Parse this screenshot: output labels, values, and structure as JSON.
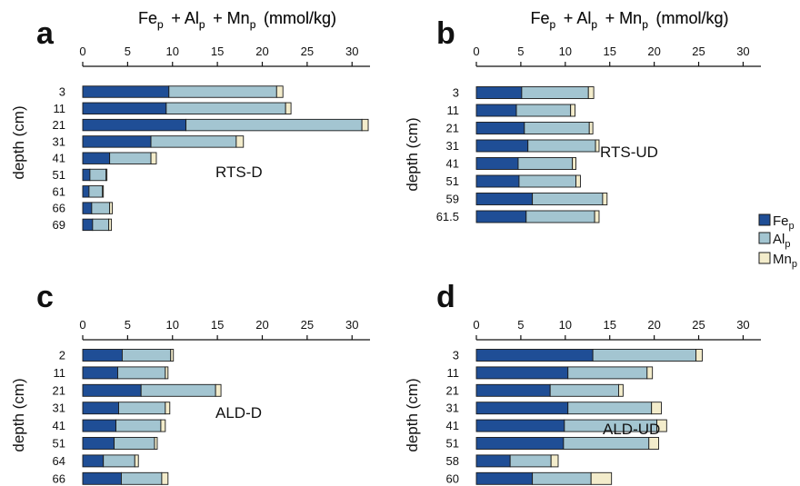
{
  "colors": {
    "Fe": "#1f4e96",
    "Al": "#a3c5d1",
    "Mn": "#f3eccb",
    "stroke": "#1a1a1a"
  },
  "legend": {
    "items": [
      {
        "key": "Fe",
        "base": "Fe",
        "sub": "p"
      },
      {
        "key": "Al",
        "base": "Al",
        "sub": "p"
      },
      {
        "key": "Mn",
        "base": "Mn",
        "sub": "p"
      }
    ]
  },
  "chart_data": [
    {
      "type": "bar",
      "panel": "a",
      "site": "RTS-D",
      "title": "Fep + Alp + Mnp (mmol/kg)",
      "ylabel": "depth (cm)",
      "xlim": [
        0,
        32
      ],
      "xticks": [
        0,
        5,
        10,
        15,
        20,
        25,
        30
      ],
      "categories": [
        "3",
        "11",
        "21",
        "31",
        "41",
        "51",
        "61",
        "66",
        "69"
      ],
      "series": [
        {
          "name": "Fep",
          "values": [
            9.6,
            9.3,
            11.5,
            7.6,
            3.0,
            0.8,
            0.7,
            1.0,
            1.1
          ]
        },
        {
          "name": "Alp",
          "values": [
            12.0,
            13.3,
            19.6,
            9.5,
            4.6,
            1.8,
            1.5,
            2.0,
            1.8
          ]
        },
        {
          "name": "Mnp",
          "values": [
            0.7,
            0.6,
            0.7,
            0.8,
            0.6,
            0.1,
            0.1,
            0.3,
            0.3
          ]
        }
      ]
    },
    {
      "type": "bar",
      "panel": "b",
      "site": "RTS-UD",
      "title": "Fep + Alp + Mnp (mmol/kg)",
      "ylabel": "depth (cm)",
      "xlim": [
        0,
        32
      ],
      "xticks": [
        0,
        5,
        10,
        15,
        20,
        25,
        30
      ],
      "categories": [
        "3",
        "11",
        "21",
        "31",
        "41",
        "51",
        "59",
        "61.5"
      ],
      "series": [
        {
          "name": "Fep",
          "values": [
            5.1,
            4.5,
            5.4,
            5.8,
            4.7,
            4.8,
            6.3,
            5.6
          ]
        },
        {
          "name": "Alp",
          "values": [
            7.5,
            6.1,
            7.3,
            7.6,
            6.1,
            6.4,
            7.9,
            7.7
          ]
        },
        {
          "name": "Mnp",
          "values": [
            0.6,
            0.5,
            0.4,
            0.4,
            0.4,
            0.5,
            0.5,
            0.5
          ]
        }
      ]
    },
    {
      "type": "bar",
      "panel": "c",
      "site": "ALD-D",
      "title": "Fep + Alp + Mnp (mmol/kg)",
      "ylabel": "depth (cm)",
      "xlim": [
        0,
        32
      ],
      "xticks": [
        0,
        5,
        10,
        15,
        20,
        25,
        30
      ],
      "categories": [
        "2",
        "11",
        "21",
        "31",
        "41",
        "51",
        "64",
        "66"
      ],
      "series": [
        {
          "name": "Fep",
          "values": [
            4.4,
            3.9,
            6.5,
            4.0,
            3.7,
            3.5,
            2.3,
            4.3
          ]
        },
        {
          "name": "Alp",
          "values": [
            5.4,
            5.3,
            8.3,
            5.2,
            5.0,
            4.5,
            3.5,
            4.5
          ]
        },
        {
          "name": "Mnp",
          "values": [
            0.3,
            0.3,
            0.6,
            0.5,
            0.5,
            0.3,
            0.4,
            0.7
          ]
        }
      ]
    },
    {
      "type": "bar",
      "panel": "d",
      "site": "ALD-UD",
      "title": "Fep + Alp + Mnp (mmol/kg)",
      "ylabel": "depth (cm)",
      "xlim": [
        0,
        32
      ],
      "xticks": [
        0,
        5,
        10,
        15,
        20,
        25,
        30
      ],
      "categories": [
        "3",
        "11",
        "21",
        "31",
        "41",
        "51",
        "58",
        "60"
      ],
      "series": [
        {
          "name": "Fep",
          "values": [
            13.1,
            10.3,
            8.3,
            10.3,
            9.9,
            9.8,
            3.8,
            6.3
          ]
        },
        {
          "name": "Alp",
          "values": [
            11.6,
            8.9,
            7.7,
            9.4,
            10.4,
            9.6,
            4.6,
            6.6
          ]
        },
        {
          "name": "Mnp",
          "values": [
            0.7,
            0.6,
            0.5,
            1.1,
            1.1,
            1.1,
            0.8,
            2.3
          ]
        }
      ]
    }
  ]
}
